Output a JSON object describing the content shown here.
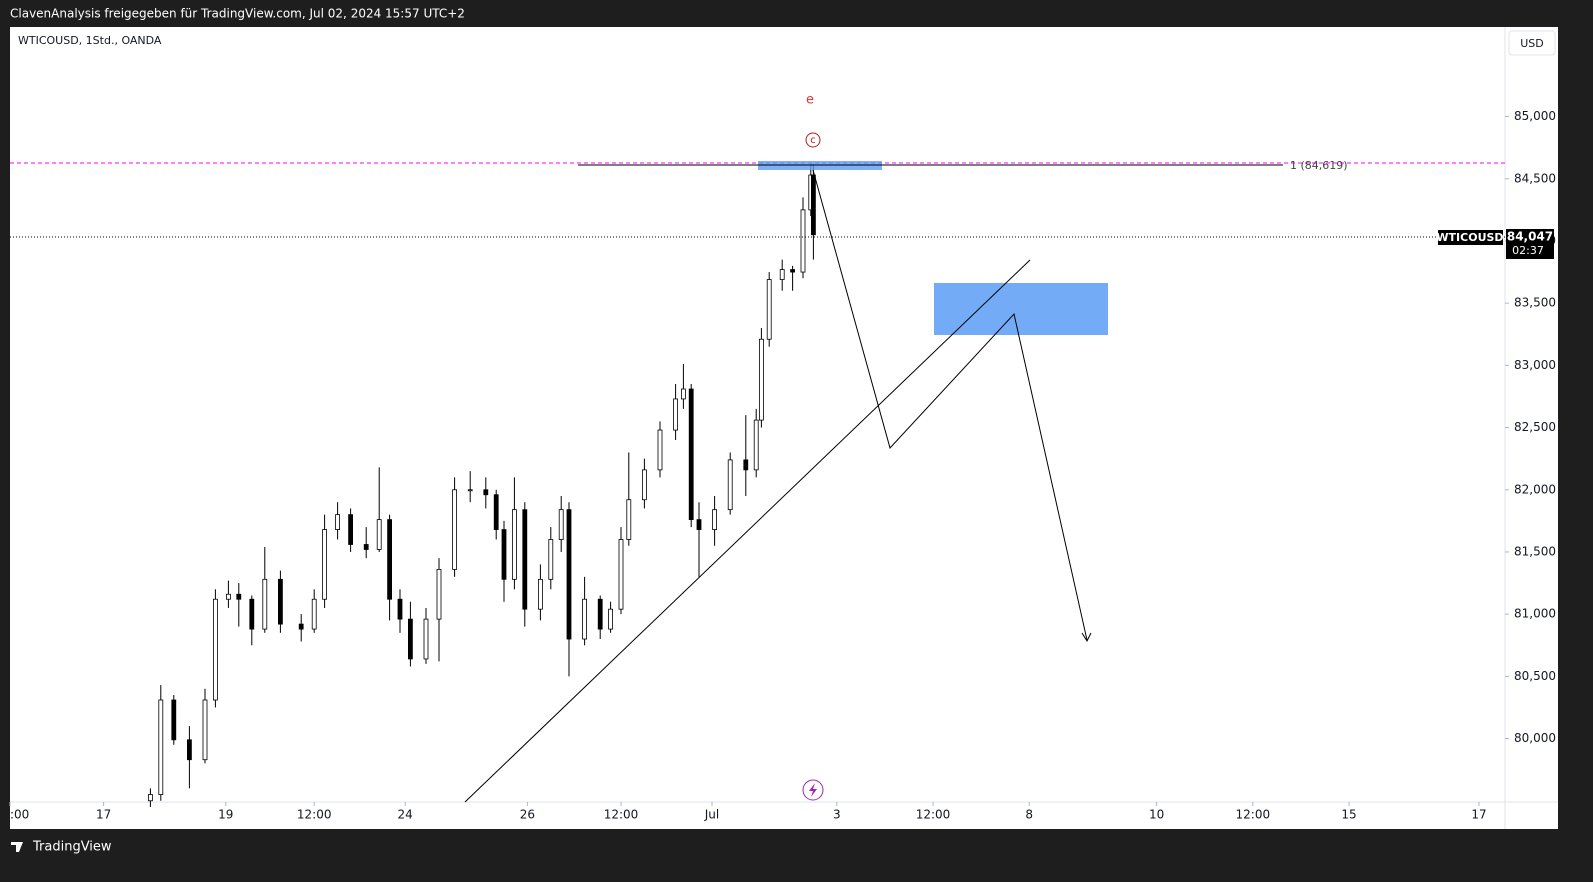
{
  "header": {
    "title": "ClavenAnalysis freigegeben für TradingView.com, Jul 02, 2024 15:57 UTC+2"
  },
  "footer": {
    "brand": "TradingView"
  },
  "chart_data": {
    "type": "candlestick",
    "symbol": "WTICOUSD, 1Std., OANDA",
    "currency": "USD",
    "annotations": {
      "wave_label": "e",
      "wave_circle": "c",
      "fib_level": "1 (84,619)",
      "price_tag_symbol": "WTICOUSD",
      "last_price": "84,047",
      "countdown": "02:37"
    },
    "x": [
      54,
      58,
      63,
      69,
      75,
      79,
      84,
      88,
      93,
      98,
      104,
      112,
      117,
      121,
      126,
      131,
      137,
      142,
      146,
      150,
      154,
      160,
      165,
      171,
      177,
      183,
      187,
      190,
      194,
      198,
      204,
      208,
      212,
      215,
      221,
      227,
      231,
      235,
      238,
      244,
      250,
      256,
      259,
      262,
      265,
      271,
      277,
      283,
      287,
      289,
      292,
      297,
      301,
      305,
      308,
      309
    ],
    "open": [
      79.5,
      79.55,
      80.31,
      79.99,
      79.83,
      80.31,
      81.12,
      81.16,
      81.12,
      80.88,
      81.28,
      80.92,
      80.88,
      81.12,
      81.68,
      81.8,
      81.56,
      81.52,
      81.76,
      81.12,
      80.96,
      80.64,
      80.96,
      81.36,
      82.0,
      82.0,
      81.96,
      81.68,
      81.28,
      81.84,
      81.04,
      81.28,
      81.6,
      81.84,
      80.8,
      81.12,
      80.88,
      81.04,
      81.6,
      81.92,
      82.16,
      82.48,
      82.73,
      82.81,
      81.76,
      81.68,
      81.84,
      82.24,
      82.16,
      82.56,
      83.21,
      83.69,
      83.77,
      83.75,
      84.25,
      84.53
    ],
    "high": [
      79.6,
      80.43,
      80.35,
      80.1,
      80.4,
      81.2,
      81.27,
      81.25,
      81.15,
      81.54,
      81.35,
      81.0,
      81.2,
      81.8,
      81.9,
      81.85,
      81.7,
      82.18,
      81.8,
      81.2,
      81.1,
      81.05,
      81.45,
      82.1,
      82.15,
      82.1,
      82.0,
      81.75,
      82.1,
      81.9,
      81.4,
      81.7,
      81.95,
      81.9,
      81.3,
      81.15,
      81.1,
      81.7,
      82.3,
      82.25,
      82.55,
      82.85,
      83.01,
      82.85,
      81.9,
      81.95,
      82.3,
      82.6,
      82.65,
      83.3,
      83.75,
      83.85,
      83.8,
      84.35,
      84.62,
      84.62
    ],
    "low": [
      79.45,
      79.5,
      79.95,
      79.6,
      79.8,
      80.25,
      81.05,
      80.9,
      80.75,
      80.85,
      80.85,
      80.78,
      80.85,
      81.05,
      81.6,
      81.5,
      81.45,
      81.5,
      80.95,
      80.85,
      80.58,
      80.6,
      80.62,
      81.3,
      81.9,
      81.85,
      81.6,
      81.1,
      81.2,
      80.9,
      80.95,
      81.2,
      81.5,
      80.5,
      80.75,
      80.8,
      80.85,
      81.0,
      81.55,
      81.85,
      82.1,
      82.4,
      82.65,
      81.7,
      81.3,
      81.55,
      81.8,
      81.95,
      82.1,
      82.5,
      83.15,
      83.6,
      83.6,
      83.7,
      84.2,
      83.85
    ],
    "close": [
      79.55,
      80.31,
      79.99,
      79.83,
      80.31,
      81.12,
      81.16,
      81.12,
      80.88,
      81.28,
      80.92,
      80.88,
      81.12,
      81.68,
      81.8,
      81.56,
      81.52,
      81.76,
      81.12,
      80.96,
      80.64,
      80.96,
      81.36,
      82.0,
      82.0,
      81.96,
      81.68,
      81.28,
      81.84,
      81.04,
      81.28,
      81.6,
      81.84,
      80.8,
      81.12,
      80.88,
      81.04,
      81.6,
      81.92,
      82.16,
      82.48,
      82.73,
      82.81,
      81.76,
      81.68,
      81.84,
      82.24,
      82.16,
      82.56,
      83.21,
      83.69,
      83.77,
      83.75,
      84.25,
      84.53,
      84.05
    ],
    "up_color": "#ffffff",
    "down_color": "#000000",
    "outline_color": "#000000",
    "xlim": [
      0,
      575
    ],
    "xticks": [
      {
        "value": 0,
        "label": ":00"
      },
      {
        "value": 36,
        "label": "17"
      },
      {
        "value": 83,
        "label": "19"
      },
      {
        "value": 117,
        "label": "12:00"
      },
      {
        "value": 152,
        "label": "24"
      },
      {
        "value": 199,
        "label": "26"
      },
      {
        "value": 235,
        "label": "12:00"
      },
      {
        "value": 270,
        "label": "Jul"
      },
      {
        "value": 318,
        "label": "3"
      },
      {
        "value": 355,
        "label": "12:00"
      },
      {
        "value": 392,
        "label": "8"
      },
      {
        "value": 441,
        "label": "10"
      },
      {
        "value": 478,
        "label": "12:00"
      },
      {
        "value": 515,
        "label": "15"
      },
      {
        "value": 565,
        "label": "17"
      }
    ],
    "ylim": [
      79.49,
      85.72
    ],
    "yticks": [
      {
        "value": 80,
        "label": "80,000"
      },
      {
        "value": 80.5,
        "label": "80,500"
      },
      {
        "value": 81,
        "label": "81,000"
      },
      {
        "value": 81.5,
        "label": "81,500"
      },
      {
        "value": 82,
        "label": "82,000"
      },
      {
        "value": 82.5,
        "label": "82,500"
      },
      {
        "value": 83,
        "label": "83,000"
      },
      {
        "value": 83.5,
        "label": "83,500"
      },
      {
        "value": 84,
        "label": "84,000"
      },
      {
        "value": 84.5,
        "label": "84,500"
      },
      {
        "value": 85,
        "label": "85,000"
      }
    ]
  }
}
